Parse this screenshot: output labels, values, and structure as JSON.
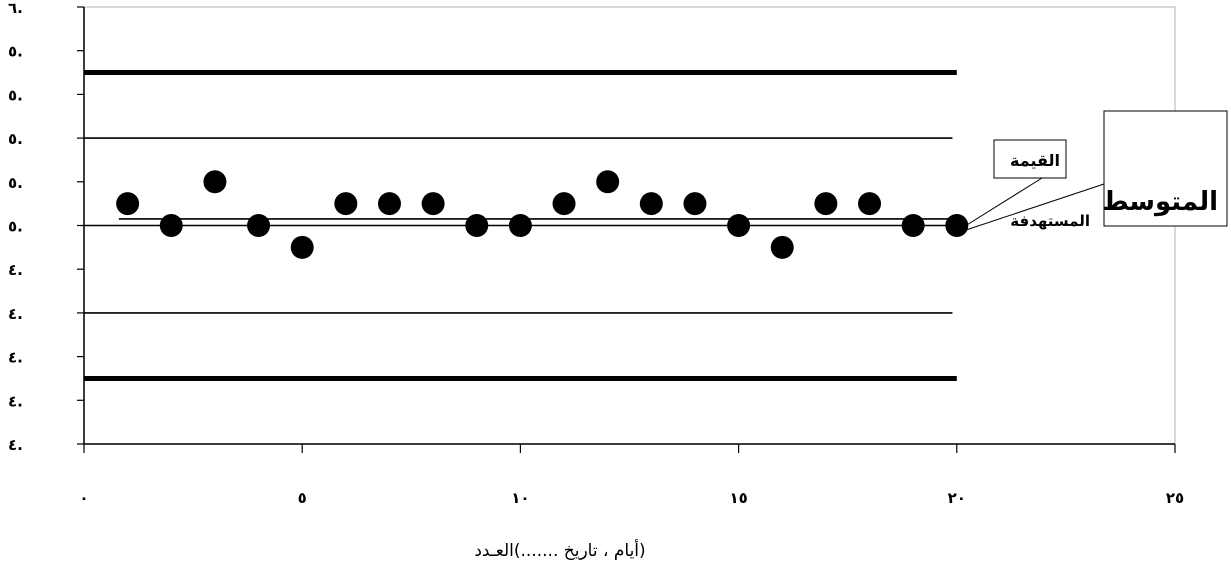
{
  "chart_data": {
    "type": "scatter",
    "xlabel": "(أيام ، تاريخ .......)العـدد",
    "ylabel": "",
    "xlim": [
      0,
      25
    ],
    "ylim": [
      0,
      10
    ],
    "x_ticks": [
      0,
      5,
      10,
      15,
      20,
      25
    ],
    "x_tick_labels": [
      "٠",
      "٥",
      "١٠",
      "١٥",
      "٢٠",
      "٢٥"
    ],
    "y_ticks": [
      0,
      1,
      2,
      3,
      4,
      5,
      6,
      7,
      8,
      9,
      10
    ],
    "y_tick_labels": [
      "٤.",
      "٤.",
      "٤.",
      "٤.",
      "٤.",
      "٥.",
      "٥.",
      "٥.",
      "٥.",
      "٥.",
      "٦."
    ],
    "grid": false,
    "points": {
      "x": [
        1,
        2,
        3,
        4,
        5,
        6,
        7,
        8,
        9,
        10,
        11,
        12,
        13,
        14,
        15,
        16,
        17,
        18,
        19,
        20
      ],
      "y": [
        5.5,
        5.0,
        6.0,
        5.0,
        4.5,
        5.5,
        5.5,
        5.5,
        5.0,
        5.0,
        5.5,
        6.0,
        5.5,
        5.5,
        5.0,
        4.5,
        5.5,
        5.5,
        5.0,
        5.0
      ]
    },
    "reference_lines": [
      {
        "kind": "control-limit",
        "y": 8.5,
        "x": [
          0,
          20
        ],
        "weight": "heavy"
      },
      {
        "kind": "warning-limit",
        "y": 7.0,
        "x": [
          0,
          19.9
        ],
        "weight": "light"
      },
      {
        "kind": "mean",
        "y": 5.15,
        "x": [
          0.8,
          20
        ],
        "weight": "light"
      },
      {
        "kind": "mean",
        "y": 5.0,
        "x": [
          0,
          20
        ],
        "weight": "light"
      },
      {
        "kind": "warning-limit",
        "y": 3.0,
        "x": [
          0,
          19.9
        ],
        "weight": "light"
      },
      {
        "kind": "control-limit",
        "y": 1.5,
        "x": [
          0,
          20
        ],
        "weight": "heavy"
      }
    ],
    "annotations": [
      {
        "text": "القيمة",
        "role": "target-value-callout"
      },
      {
        "text": "المستهدفة",
        "role": "target-value-callout-line2"
      },
      {
        "text": "المتوسط",
        "role": "mean-callout"
      }
    ]
  }
}
